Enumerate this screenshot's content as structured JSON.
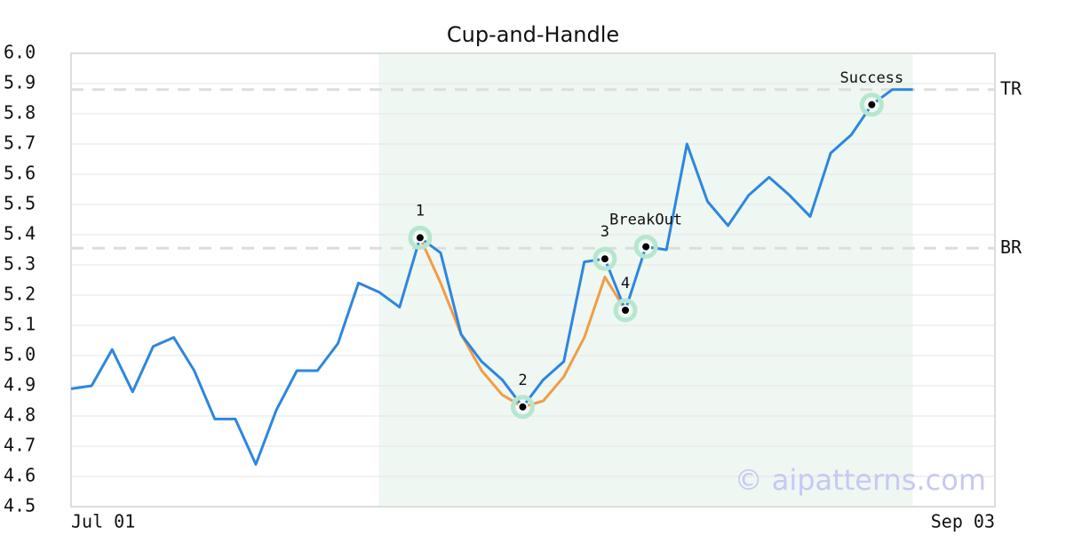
{
  "chart_data": {
    "type": "line",
    "title": "Cup-and-Handle",
    "x": [
      0,
      1,
      2,
      3,
      4,
      5,
      6,
      7,
      8,
      9,
      10,
      11,
      12,
      13,
      14,
      15,
      16,
      17,
      18,
      19,
      20,
      21,
      22,
      23,
      24,
      25,
      26,
      27,
      28,
      29,
      30,
      31,
      32,
      33,
      34,
      35,
      36,
      37,
      38,
      39,
      40,
      41
    ],
    "series": [
      {
        "color": "#2e86de",
        "values": [
          4.89,
          4.9,
          5.02,
          4.88,
          5.03,
          5.06,
          4.95,
          4.79,
          4.79,
          4.64,
          4.82,
          4.95,
          4.95,
          5.04,
          5.24,
          5.21,
          5.16,
          5.39,
          5.34,
          5.07,
          4.98,
          4.92,
          4.83,
          4.92,
          4.98,
          5.31,
          5.32,
          5.15,
          5.36,
          5.35,
          5.7,
          5.51,
          5.43,
          5.53,
          5.59,
          5.53,
          5.46,
          5.67,
          5.73,
          5.83,
          5.88,
          5.88
        ]
      },
      {
        "color": "#f39c45",
        "values": [
          null,
          null,
          null,
          null,
          null,
          null,
          null,
          null,
          null,
          null,
          null,
          null,
          null,
          null,
          null,
          null,
          null,
          5.39,
          5.24,
          5.07,
          4.95,
          4.87,
          4.83,
          4.85,
          4.93,
          5.06,
          5.26,
          5.15,
          null,
          null,
          null,
          null,
          null,
          null,
          null,
          null,
          null,
          null,
          null,
          null,
          null,
          null
        ]
      }
    ],
    "xlim": [
      0,
      45
    ],
    "xticks": [
      {
        "value": 0,
        "label": "Jul 01"
      },
      {
        "value": 45,
        "label": "Sep 03"
      }
    ],
    "ylim": [
      4.5,
      6.0
    ],
    "yticks": [
      {
        "value": 4.5,
        "label": "4.5"
      },
      {
        "value": 4.6,
        "label": "4.6"
      },
      {
        "value": 4.7,
        "label": "4.7"
      },
      {
        "value": 4.8,
        "label": "4.8"
      },
      {
        "value": 4.9,
        "label": "4.9"
      },
      {
        "value": 5.0,
        "label": "5.0"
      },
      {
        "value": 5.1,
        "label": "5.1"
      },
      {
        "value": 5.2,
        "label": "5.2"
      },
      {
        "value": 5.3,
        "label": "5.3"
      },
      {
        "value": 5.4,
        "label": "5.4"
      },
      {
        "value": 5.5,
        "label": "5.5"
      },
      {
        "value": 5.6,
        "label": "5.6"
      },
      {
        "value": 5.7,
        "label": "5.7"
      },
      {
        "value": 5.8,
        "label": "5.8"
      },
      {
        "value": 5.9,
        "label": "5.9"
      },
      {
        "value": 6.0,
        "label": "6.0"
      }
    ],
    "grid": true,
    "shaded_range": [
      15,
      41
    ],
    "levels": [
      {
        "label": "TR",
        "value": 5.88
      },
      {
        "label": "BR",
        "value": 5.355
      }
    ],
    "annotations": [
      {
        "label": "1",
        "x": 17,
        "y": 5.39
      },
      {
        "label": "2",
        "x": 22,
        "y": 4.83
      },
      {
        "label": "3",
        "x": 26,
        "y": 5.32
      },
      {
        "label": "4",
        "x": 27,
        "y": 5.15
      },
      {
        "label": "BreakOut",
        "x": 28,
        "y": 5.36
      },
      {
        "label": "Success",
        "x": 39,
        "y": 5.83
      }
    ],
    "watermark": "© aipatterns.com"
  }
}
